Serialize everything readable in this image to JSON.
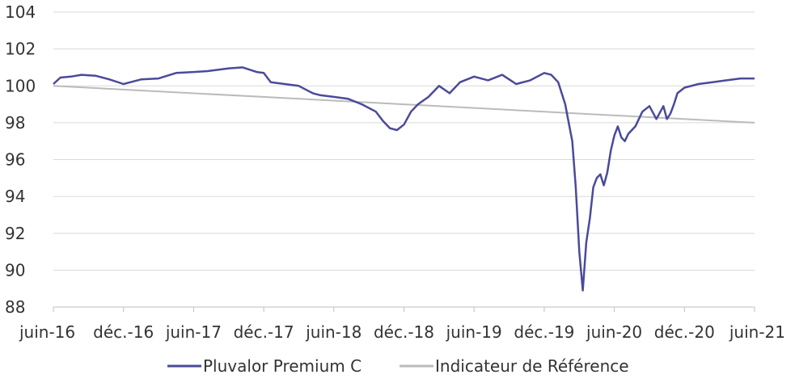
{
  "chart_data": {
    "type": "line",
    "title": "",
    "xlabel": "",
    "ylabel": "",
    "x_tick_labels": [
      "juin-16",
      "déc.-16",
      "juin-17",
      "déc.-17",
      "juin-18",
      "déc.-18",
      "juin-19",
      "déc.-19",
      "juin-20",
      "déc.-20",
      "juin-21"
    ],
    "y_tick_labels": [
      "88",
      "90",
      "92",
      "94",
      "96",
      "98",
      "100",
      "102",
      "104"
    ],
    "ylim": [
      88,
      104
    ],
    "grid": "horizontal",
    "legend_position": "bottom",
    "series": [
      {
        "name": "Pluvalor Premium C",
        "color": "#4a4a9a",
        "x": [
          0,
          0.1,
          0.25,
          0.4,
          0.6,
          0.8,
          1.0,
          1.1,
          1.25,
          1.5,
          1.75,
          2.0,
          2.2,
          2.5,
          2.7,
          2.9,
          3.0,
          3.1,
          3.3,
          3.5,
          3.7,
          3.8,
          4.0,
          4.2,
          4.4,
          4.6,
          4.7,
          4.8,
          4.9,
          5.0,
          5.1,
          5.2,
          5.35,
          5.5,
          5.65,
          5.8,
          6.0,
          6.2,
          6.4,
          6.6,
          6.8,
          7.0,
          7.1,
          7.2,
          7.3,
          7.35,
          7.4,
          7.45,
          7.5,
          7.55,
          7.6,
          7.65,
          7.7,
          7.75,
          7.8,
          7.85,
          7.9,
          7.95,
          8.0,
          8.05,
          8.1,
          8.15,
          8.2,
          8.3,
          8.4,
          8.5,
          8.6,
          8.7,
          8.75,
          8.8,
          8.85,
          8.9,
          9.0,
          9.2,
          9.4,
          9.6,
          9.8,
          10.0
        ],
        "values": [
          100.1,
          100.45,
          100.5,
          100.6,
          100.55,
          100.35,
          100.1,
          100.2,
          100.35,
          100.4,
          100.7,
          100.75,
          100.8,
          100.95,
          101.0,
          100.75,
          100.7,
          100.2,
          100.1,
          100.0,
          99.6,
          99.5,
          99.4,
          99.3,
          99.0,
          98.6,
          98.1,
          97.7,
          97.6,
          97.9,
          98.6,
          99.0,
          99.4,
          100.0,
          99.6,
          100.2,
          100.5,
          100.3,
          100.6,
          100.1,
          100.3,
          100.7,
          100.6,
          100.2,
          99.0,
          98.0,
          97.0,
          94.5,
          91.0,
          88.9,
          91.5,
          92.8,
          94.5,
          95.0,
          95.2,
          94.6,
          95.3,
          96.5,
          97.3,
          97.8,
          97.2,
          97.0,
          97.4,
          97.8,
          98.6,
          98.9,
          98.2,
          98.9,
          98.2,
          98.5,
          99.0,
          99.6,
          99.9,
          100.1,
          100.2,
          100.3,
          100.4,
          100.4
        ]
      },
      {
        "name": "Indicateur de Référence",
        "color": "#bbbbbb",
        "x": [
          0,
          10
        ],
        "values": [
          100.0,
          98.0
        ]
      }
    ]
  }
}
